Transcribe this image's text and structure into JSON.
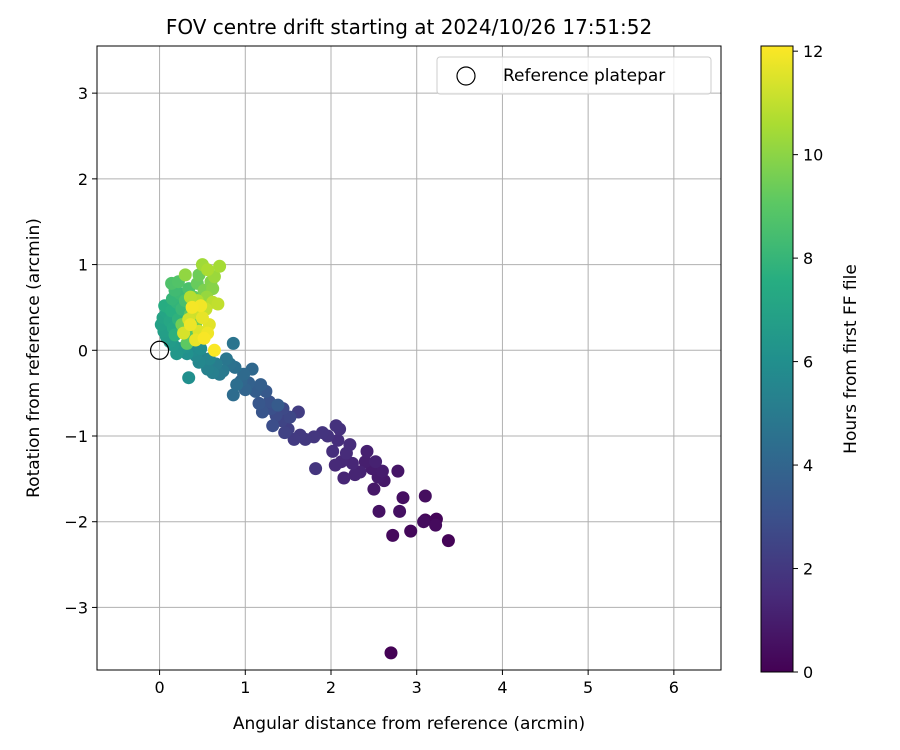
{
  "chart_data": {
    "type": "scatter",
    "title": "FOV centre drift starting at 2024/10/26 17:51:52",
    "xlabel": "Angular distance from reference (arcmin)",
    "ylabel": "Rotation from reference (arcmin)",
    "xlim": [
      -0.73,
      6.55
    ],
    "ylim": [
      -3.73,
      3.55
    ],
    "xticks": [
      0,
      1,
      2,
      3,
      4,
      5,
      6
    ],
    "yticks": [
      -3,
      -2,
      -1,
      0,
      1,
      2,
      3
    ],
    "xtick_labels": [
      "0",
      "1",
      "2",
      "3",
      "4",
      "5",
      "6"
    ],
    "ytick_labels": [
      "−3",
      "−2",
      "−1",
      "0",
      "1",
      "2",
      "3"
    ],
    "grid": true,
    "legend": {
      "position": "top-right",
      "entries": [
        {
          "label": "Reference platepar",
          "marker": "open-circle"
        }
      ]
    },
    "reference_point": {
      "x": 0,
      "y": 0
    },
    "colorbar": {
      "label": "Hours from first FF file",
      "colormap": "viridis",
      "range": [
        0,
        12.1
      ],
      "ticks": [
        0,
        2,
        4,
        6,
        8,
        10,
        12
      ],
      "tick_labels": [
        "0",
        "2",
        "4",
        "6",
        "8",
        "10",
        "12"
      ]
    },
    "points": [
      {
        "x": 2.7,
        "y": -3.53,
        "c": 0.05
      },
      {
        "x": 3.37,
        "y": -2.22,
        "c": 0.1
      },
      {
        "x": 3.23,
        "y": -1.97,
        "c": 0.15
      },
      {
        "x": 3.1,
        "y": -1.98,
        "c": 0.2
      },
      {
        "x": 2.93,
        "y": -2.11,
        "c": 0.25
      },
      {
        "x": 2.72,
        "y": -2.16,
        "c": 0.3
      },
      {
        "x": 3.22,
        "y": -2.04,
        "c": 0.35
      },
      {
        "x": 3.08,
        "y": -2.0,
        "c": 0.4
      },
      {
        "x": 3.1,
        "y": -1.7,
        "c": 0.45
      },
      {
        "x": 2.84,
        "y": -1.72,
        "c": 0.5
      },
      {
        "x": 2.8,
        "y": -1.88,
        "c": 0.55
      },
      {
        "x": 2.56,
        "y": -1.88,
        "c": 0.6
      },
      {
        "x": 2.78,
        "y": -1.41,
        "c": 0.7
      },
      {
        "x": 2.5,
        "y": -1.62,
        "c": 0.8
      },
      {
        "x": 2.62,
        "y": -1.52,
        "c": 0.85
      },
      {
        "x": 2.55,
        "y": -1.48,
        "c": 0.9
      },
      {
        "x": 2.48,
        "y": -1.38,
        "c": 0.95
      },
      {
        "x": 2.6,
        "y": -1.41,
        "c": 1.0
      },
      {
        "x": 2.4,
        "y": -1.3,
        "c": 1.05
      },
      {
        "x": 2.42,
        "y": -1.18,
        "c": 1.1
      },
      {
        "x": 2.52,
        "y": -1.3,
        "c": 1.15
      },
      {
        "x": 2.34,
        "y": -1.42,
        "c": 1.2
      },
      {
        "x": 2.28,
        "y": -1.45,
        "c": 1.25
      },
      {
        "x": 2.15,
        "y": -1.49,
        "c": 1.3
      },
      {
        "x": 2.25,
        "y": -1.32,
        "c": 1.35
      },
      {
        "x": 2.12,
        "y": -1.3,
        "c": 1.4
      },
      {
        "x": 2.05,
        "y": -1.34,
        "c": 1.45
      },
      {
        "x": 2.18,
        "y": -1.2,
        "c": 1.5
      },
      {
        "x": 2.22,
        "y": -1.1,
        "c": 1.55
      },
      {
        "x": 2.08,
        "y": -1.05,
        "c": 1.6
      },
      {
        "x": 2.02,
        "y": -1.18,
        "c": 1.65
      },
      {
        "x": 2.1,
        "y": -0.92,
        "c": 1.7
      },
      {
        "x": 2.06,
        "y": -0.88,
        "c": 1.75
      },
      {
        "x": 1.96,
        "y": -1.0,
        "c": 1.8
      },
      {
        "x": 1.9,
        "y": -0.96,
        "c": 1.85
      },
      {
        "x": 1.82,
        "y": -1.38,
        "c": 1.9
      },
      {
        "x": 1.8,
        "y": -1.01,
        "c": 1.95
      },
      {
        "x": 1.7,
        "y": -1.04,
        "c": 2.0
      },
      {
        "x": 1.64,
        "y": -0.99,
        "c": 2.05
      },
      {
        "x": 1.57,
        "y": -1.04,
        "c": 2.1
      },
      {
        "x": 1.62,
        "y": -0.72,
        "c": 2.2
      },
      {
        "x": 1.5,
        "y": -0.92,
        "c": 2.3
      },
      {
        "x": 1.46,
        "y": -0.96,
        "c": 2.4
      },
      {
        "x": 1.42,
        "y": -0.82,
        "c": 2.5
      },
      {
        "x": 1.52,
        "y": -0.78,
        "c": 2.6
      },
      {
        "x": 1.44,
        "y": -0.68,
        "c": 2.7
      },
      {
        "x": 1.36,
        "y": -0.76,
        "c": 2.8
      },
      {
        "x": 1.32,
        "y": -0.88,
        "c": 2.9
      },
      {
        "x": 1.3,
        "y": -0.68,
        "c": 3.0
      },
      {
        "x": 1.28,
        "y": -0.6,
        "c": 3.1
      },
      {
        "x": 1.2,
        "y": -0.72,
        "c": 3.2
      },
      {
        "x": 1.16,
        "y": -0.62,
        "c": 3.3
      },
      {
        "x": 1.24,
        "y": -0.48,
        "c": 3.4
      },
      {
        "x": 1.38,
        "y": -0.64,
        "c": 3.5
      },
      {
        "x": 1.12,
        "y": -0.48,
        "c": 3.6
      },
      {
        "x": 1.18,
        "y": -0.4,
        "c": 3.7
      },
      {
        "x": 1.04,
        "y": -0.38,
        "c": 3.8
      },
      {
        "x": 1.0,
        "y": -0.46,
        "c": 3.9
      },
      {
        "x": 0.95,
        "y": -0.36,
        "c": 4.0
      },
      {
        "x": 1.08,
        "y": -0.22,
        "c": 4.1
      },
      {
        "x": 0.98,
        "y": -0.28,
        "c": 4.2
      },
      {
        "x": 0.86,
        "y": -0.52,
        "c": 4.3
      },
      {
        "x": 0.9,
        "y": -0.4,
        "c": 4.4
      },
      {
        "x": 0.88,
        "y": -0.2,
        "c": 4.5
      },
      {
        "x": 0.82,
        "y": -0.16,
        "c": 4.6
      },
      {
        "x": 0.86,
        "y": 0.08,
        "c": 4.7
      },
      {
        "x": 0.78,
        "y": -0.1,
        "c": 4.8
      },
      {
        "x": 0.74,
        "y": -0.24,
        "c": 4.9
      },
      {
        "x": 0.7,
        "y": -0.28,
        "c": 5.0
      },
      {
        "x": 0.66,
        "y": -0.16,
        "c": 5.1
      },
      {
        "x": 0.62,
        "y": -0.26,
        "c": 5.2
      },
      {
        "x": 0.56,
        "y": -0.22,
        "c": 5.3
      },
      {
        "x": 0.52,
        "y": -0.1,
        "c": 5.4
      },
      {
        "x": 0.58,
        "y": -0.1,
        "c": 5.5
      },
      {
        "x": 0.46,
        "y": -0.14,
        "c": 5.6
      },
      {
        "x": 0.42,
        "y": -0.06,
        "c": 5.7
      },
      {
        "x": 0.4,
        "y": 0.0,
        "c": 5.8
      },
      {
        "x": 0.48,
        "y": 0.02,
        "c": 5.9
      },
      {
        "x": 0.34,
        "y": -0.32,
        "c": 6.0
      },
      {
        "x": 0.32,
        "y": -0.04,
        "c": 6.1
      },
      {
        "x": 0.3,
        "y": 0.04,
        "c": 6.2
      },
      {
        "x": 0.24,
        "y": 0.02,
        "c": 6.3
      },
      {
        "x": 0.2,
        "y": -0.04,
        "c": 6.4
      },
      {
        "x": 0.16,
        "y": 0.06,
        "c": 6.5
      },
      {
        "x": 0.12,
        "y": 0.1,
        "c": 6.6
      },
      {
        "x": 0.08,
        "y": 0.16,
        "c": 6.7
      },
      {
        "x": 0.05,
        "y": 0.22,
        "c": 6.8
      },
      {
        "x": 0.02,
        "y": 0.3,
        "c": 6.9
      },
      {
        "x": 0.04,
        "y": 0.38,
        "c": 7.0
      },
      {
        "x": 0.08,
        "y": 0.44,
        "c": 7.1
      },
      {
        "x": 0.12,
        "y": 0.34,
        "c": 7.2
      },
      {
        "x": 0.16,
        "y": 0.26,
        "c": 7.3
      },
      {
        "x": 0.1,
        "y": 0.5,
        "c": 7.4
      },
      {
        "x": 0.06,
        "y": 0.52,
        "c": 7.5
      },
      {
        "x": 0.14,
        "y": 0.46,
        "c": 7.6
      },
      {
        "x": 0.18,
        "y": 0.18,
        "c": 7.7
      },
      {
        "x": 0.22,
        "y": 0.36,
        "c": 7.8
      },
      {
        "x": 0.2,
        "y": 0.56,
        "c": 7.9
      },
      {
        "x": 0.15,
        "y": 0.6,
        "c": 8.0
      },
      {
        "x": 0.26,
        "y": 0.48,
        "c": 8.1
      },
      {
        "x": 0.24,
        "y": 0.66,
        "c": 8.2
      },
      {
        "x": 0.18,
        "y": 0.7,
        "c": 8.3
      },
      {
        "x": 0.28,
        "y": 0.24,
        "c": 8.4
      },
      {
        "x": 0.3,
        "y": 0.58,
        "c": 8.5
      },
      {
        "x": 0.34,
        "y": 0.72,
        "c": 8.6
      },
      {
        "x": 0.14,
        "y": 0.78,
        "c": 8.7
      },
      {
        "x": 0.22,
        "y": 0.8,
        "c": 8.8
      },
      {
        "x": 0.36,
        "y": 0.42,
        "c": 8.9
      },
      {
        "x": 0.38,
        "y": 0.16,
        "c": 9.0
      },
      {
        "x": 0.32,
        "y": 0.08,
        "c": 9.1
      },
      {
        "x": 0.4,
        "y": 0.62,
        "c": 9.2
      },
      {
        "x": 0.44,
        "y": 0.78,
        "c": 9.3
      },
      {
        "x": 0.46,
        "y": 0.88,
        "c": 9.4
      },
      {
        "x": 0.26,
        "y": 0.3,
        "c": 9.5
      },
      {
        "x": 0.42,
        "y": 0.3,
        "c": 9.6
      },
      {
        "x": 0.52,
        "y": 0.7,
        "c": 9.7
      },
      {
        "x": 0.6,
        "y": 0.8,
        "c": 9.8
      },
      {
        "x": 0.62,
        "y": 0.72,
        "c": 9.9
      },
      {
        "x": 0.48,
        "y": 0.46,
        "c": 10.0
      },
      {
        "x": 0.3,
        "y": 0.88,
        "c": 10.1
      },
      {
        "x": 0.55,
        "y": 0.62,
        "c": 10.2
      },
      {
        "x": 0.64,
        "y": 0.86,
        "c": 10.3
      },
      {
        "x": 0.5,
        "y": 1.0,
        "c": 10.4
      },
      {
        "x": 0.7,
        "y": 0.98,
        "c": 10.5
      },
      {
        "x": 0.56,
        "y": 0.94,
        "c": 10.6
      },
      {
        "x": 0.44,
        "y": 0.58,
        "c": 10.7
      },
      {
        "x": 0.36,
        "y": 0.62,
        "c": 10.8
      },
      {
        "x": 0.62,
        "y": 0.56,
        "c": 10.9
      },
      {
        "x": 0.68,
        "y": 0.54,
        "c": 11.0
      },
      {
        "x": 0.54,
        "y": 0.48,
        "c": 11.1
      },
      {
        "x": 0.4,
        "y": 0.44,
        "c": 11.2
      },
      {
        "x": 0.34,
        "y": 0.36,
        "c": 11.3
      },
      {
        "x": 0.28,
        "y": 0.2,
        "c": 11.4
      },
      {
        "x": 0.46,
        "y": 0.22,
        "c": 11.5
      },
      {
        "x": 0.58,
        "y": 0.3,
        "c": 11.6
      },
      {
        "x": 0.5,
        "y": 0.38,
        "c": 11.7
      },
      {
        "x": 0.42,
        "y": 0.12,
        "c": 11.75
      },
      {
        "x": 0.36,
        "y": 0.3,
        "c": 11.8
      },
      {
        "x": 0.56,
        "y": 0.2,
        "c": 11.85
      },
      {
        "x": 0.48,
        "y": 0.52,
        "c": 11.9
      },
      {
        "x": 0.38,
        "y": 0.5,
        "c": 11.95
      },
      {
        "x": 0.52,
        "y": 0.14,
        "c": 12.0
      },
      {
        "x": 0.64,
        "y": 0.0,
        "c": 12.05
      }
    ]
  }
}
